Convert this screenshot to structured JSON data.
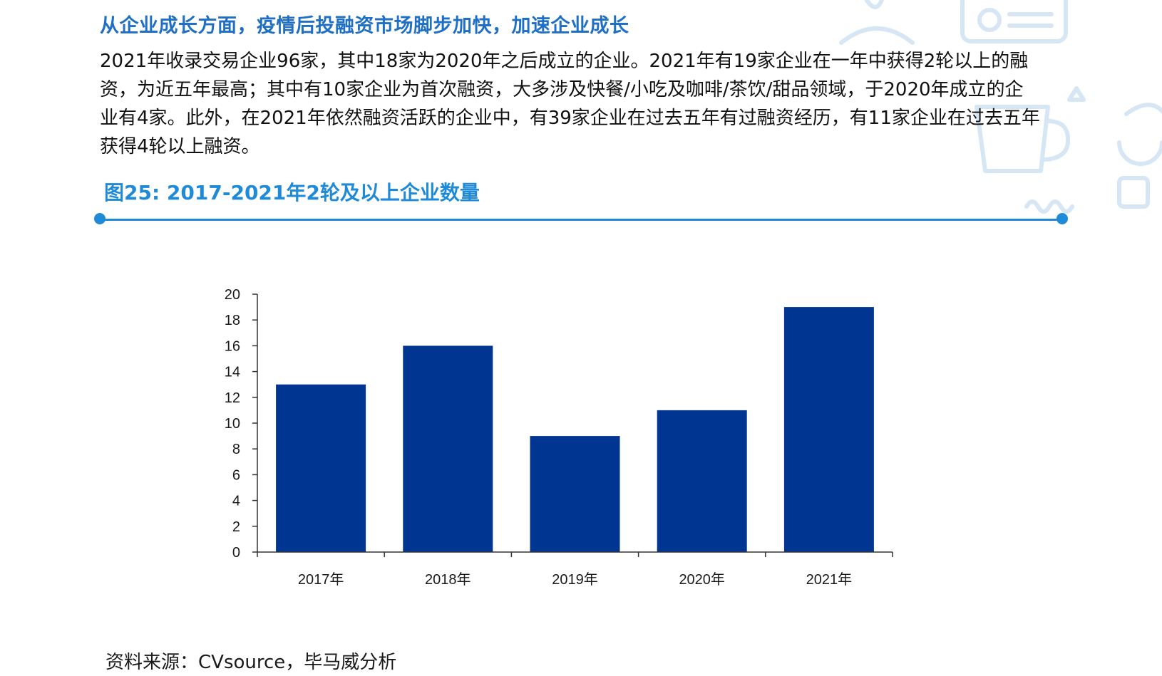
{
  "header": {
    "heading": "从企业成长方面，疫情后投融资市场脚步加快，加速企业成长"
  },
  "body": {
    "paragraph": "2021年收录交易企业96家，其中18家为2020年之后成立的企业。2021年有19家企业在一年中获得2轮以上的融资，为近五年最高；其中有10家企业为首次融资，大多涉及快餐/小吃及咖啡/茶饮/甜品领域，于2020年成立的企业有4家。此外，在2021年依然融资活跃的企业中，有39家企业在过去五年有过融资经历，有11家企业在过去五年获得4轮以上融资。"
  },
  "figure": {
    "title": "图25: 2017-2021年2轮及以上企业数量"
  },
  "footer": {
    "source": "资料来源：CVsource，毕马威分析"
  },
  "colors": {
    "accent": "#1f8bd8",
    "heading": "#1f6fc5",
    "bar": "#003591"
  },
  "chart_data": {
    "type": "bar",
    "categories": [
      "2017年",
      "2018年",
      "2019年",
      "2020年",
      "2021年"
    ],
    "values": [
      13,
      16,
      9,
      11,
      19
    ],
    "title": "",
    "xlabel": "",
    "ylabel": "",
    "ylim": [
      0,
      20
    ],
    "yticks": [
      "0",
      "2",
      "4",
      "6",
      "8",
      "10",
      "12",
      "14",
      "16",
      "18",
      "20"
    ],
    "grid": false,
    "legend": "none"
  }
}
